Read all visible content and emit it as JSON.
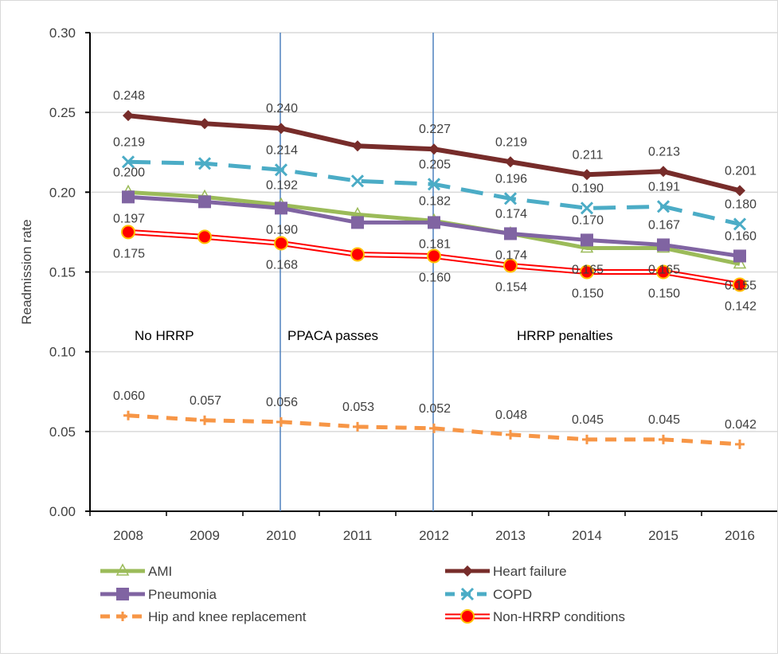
{
  "chart_data": {
    "type": "line",
    "title": "",
    "xlabel": "",
    "ylabel": "Readmission rate",
    "ylim": [
      0,
      0.3
    ],
    "yticks": [
      "0.00",
      "0.05",
      "0.10",
      "0.15",
      "0.20",
      "0.25",
      "0.30"
    ],
    "categories": [
      "2008",
      "2009",
      "2010",
      "2011",
      "2012",
      "2013",
      "2014",
      "2015",
      "2016"
    ],
    "grid": true,
    "legend_position": "bottom",
    "vertical_markers": [
      "2010",
      "2012"
    ],
    "annotations": [
      {
        "text": "No HRRP",
        "x": "2008"
      },
      {
        "text": "PPACA passes",
        "x": "2010"
      },
      {
        "text": "HRRP penalties",
        "x": "2013"
      }
    ],
    "series": [
      {
        "name": "AMI",
        "color": "#9bbb59",
        "marker": "triangle",
        "dash": false,
        "values": [
          0.2,
          0.197,
          0.192,
          0.186,
          0.182,
          0.174,
          0.165,
          0.165,
          0.155
        ],
        "labels": [
          "0.200",
          null,
          "0.192",
          null,
          "0.182",
          "0.174",
          "0.165",
          "0.165",
          "0.155"
        ],
        "label_pos": [
          "above",
          null,
          "above",
          null,
          "above",
          "below",
          "below",
          "below",
          "below"
        ]
      },
      {
        "name": "Heart failure",
        "color": "#772c2a",
        "marker": "diamond",
        "dash": false,
        "values": [
          0.248,
          0.243,
          0.24,
          0.229,
          0.227,
          0.219,
          0.211,
          0.213,
          0.201
        ],
        "labels": [
          "0.248",
          null,
          "0.240",
          null,
          "0.227",
          "0.219",
          "0.211",
          "0.213",
          "0.201"
        ],
        "label_pos": [
          "above",
          null,
          "above",
          null,
          "above",
          "above",
          "above",
          "above",
          "above"
        ]
      },
      {
        "name": "Pneumonia",
        "color": "#8064a2",
        "marker": "square",
        "dash": false,
        "values": [
          0.197,
          0.194,
          0.19,
          0.181,
          0.181,
          0.174,
          0.17,
          0.167,
          0.16
        ],
        "labels": [
          "0.197",
          null,
          "0.190",
          null,
          "0.181",
          "0.174",
          "0.170",
          "0.167",
          "0.160"
        ],
        "label_pos": [
          "below",
          null,
          "below",
          null,
          "below",
          "above",
          "above",
          "above",
          "above"
        ]
      },
      {
        "name": "COPD",
        "color": "#4bacc6",
        "marker": "x",
        "dash": true,
        "values": [
          0.219,
          0.218,
          0.214,
          0.207,
          0.205,
          0.196,
          0.19,
          0.191,
          0.18
        ],
        "labels": [
          "0.219",
          null,
          "0.214",
          null,
          "0.205",
          "0.196",
          "0.190",
          "0.191",
          "0.180"
        ],
        "label_pos": [
          "above",
          null,
          "above",
          null,
          "above",
          "above",
          "above",
          "above",
          "above"
        ]
      },
      {
        "name": "Hip and knee replacement",
        "color": "#f79646",
        "marker": "plus",
        "dash": true,
        "values": [
          0.06,
          0.057,
          0.056,
          0.053,
          0.052,
          0.048,
          0.045,
          0.045,
          0.042
        ],
        "labels": [
          "0.060",
          "0.057",
          "0.056",
          "0.053",
          "0.052",
          "0.048",
          "0.045",
          "0.045",
          "0.042"
        ],
        "label_pos": [
          "above",
          "above",
          "above",
          "above",
          "above",
          "above",
          "above",
          "above",
          "above"
        ]
      },
      {
        "name": "Non-HRRP conditions",
        "color": "#ff0000",
        "marker": "circle",
        "dash": false,
        "values": [
          0.175,
          0.172,
          0.168,
          0.161,
          0.16,
          0.154,
          0.15,
          0.15,
          0.142
        ],
        "labels": [
          "0.175",
          null,
          "0.168",
          null,
          "0.160",
          "0.154",
          "0.150",
          "0.150",
          "0.142"
        ],
        "label_pos": [
          "below",
          null,
          "below",
          null,
          "below",
          "below",
          "below",
          "below",
          "below"
        ]
      }
    ]
  }
}
